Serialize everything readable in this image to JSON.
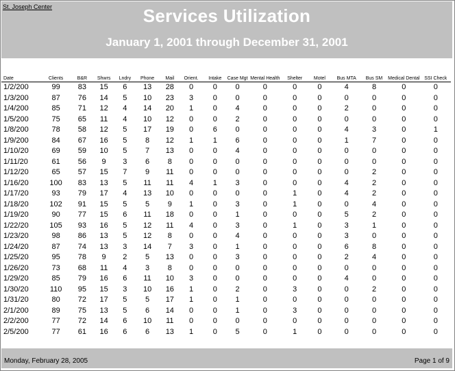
{
  "header": {
    "org": "St. Joseph Center",
    "title": "Services Utilization",
    "subtitle": "January 1, 2001 through December 31, 2001"
  },
  "columns": [
    "Date",
    "Clients",
    "B&R",
    "Shwrs",
    "Lndry",
    "Phone",
    "Mail",
    "Orient.",
    "Intake",
    "Case Mgt",
    "Mental Health",
    "Shelter",
    "Motel",
    "Bus MTA",
    "Bus SM",
    "Medical Dental",
    "SSI Check"
  ],
  "rows": [
    [
      "1/2/200",
      "99",
      "83",
      "15",
      "6",
      "13",
      "28",
      "0",
      "0",
      "0",
      "0",
      "0",
      "0",
      "4",
      "8",
      "0",
      "0"
    ],
    [
      "1/3/200",
      "87",
      "76",
      "14",
      "5",
      "10",
      "23",
      "3",
      "0",
      "0",
      "0",
      "0",
      "0",
      "0",
      "0",
      "0",
      "0"
    ],
    [
      "1/4/200",
      "85",
      "71",
      "12",
      "4",
      "14",
      "20",
      "1",
      "0",
      "4",
      "0",
      "0",
      "0",
      "2",
      "0",
      "0",
      "0"
    ],
    [
      "1/5/200",
      "75",
      "65",
      "11",
      "4",
      "10",
      "12",
      "0",
      "0",
      "2",
      "0",
      "0",
      "0",
      "0",
      "0",
      "0",
      "0"
    ],
    [
      "1/8/200",
      "78",
      "58",
      "12",
      "5",
      "17",
      "19",
      "0",
      "6",
      "0",
      "0",
      "0",
      "0",
      "4",
      "3",
      "0",
      "1"
    ],
    [
      "1/9/200",
      "84",
      "67",
      "16",
      "5",
      "8",
      "12",
      "1",
      "1",
      "6",
      "0",
      "0",
      "0",
      "1",
      "7",
      "0",
      "0"
    ],
    [
      "1/10/20",
      "69",
      "59",
      "10",
      "5",
      "7",
      "13",
      "0",
      "0",
      "4",
      "0",
      "0",
      "0",
      "0",
      "0",
      "0",
      "0"
    ],
    [
      "1/11/20",
      "61",
      "56",
      "9",
      "3",
      "6",
      "8",
      "0",
      "0",
      "0",
      "0",
      "0",
      "0",
      "0",
      "0",
      "0",
      "0"
    ],
    [
      "1/12/20",
      "65",
      "57",
      "15",
      "7",
      "9",
      "11",
      "0",
      "0",
      "0",
      "0",
      "0",
      "0",
      "0",
      "2",
      "0",
      "0"
    ],
    [
      "1/16/20",
      "100",
      "83",
      "13",
      "5",
      "11",
      "11",
      "4",
      "1",
      "3",
      "0",
      "0",
      "0",
      "4",
      "2",
      "0",
      "0"
    ],
    [
      "1/17/20",
      "93",
      "79",
      "17",
      "4",
      "13",
      "10",
      "0",
      "0",
      "0",
      "0",
      "1",
      "0",
      "4",
      "2",
      "0",
      "0"
    ],
    [
      "1/18/20",
      "102",
      "91",
      "15",
      "5",
      "5",
      "9",
      "1",
      "0",
      "3",
      "0",
      "1",
      "0",
      "0",
      "4",
      "0",
      "0"
    ],
    [
      "1/19/20",
      "90",
      "77",
      "15",
      "6",
      "11",
      "18",
      "0",
      "0",
      "1",
      "0",
      "0",
      "0",
      "5",
      "2",
      "0",
      "0"
    ],
    [
      "1/22/20",
      "105",
      "93",
      "16",
      "5",
      "12",
      "11",
      "4",
      "0",
      "3",
      "0",
      "1",
      "0",
      "3",
      "1",
      "0",
      "0"
    ],
    [
      "1/23/20",
      "98",
      "86",
      "13",
      "5",
      "12",
      "8",
      "0",
      "0",
      "4",
      "0",
      "0",
      "0",
      "3",
      "0",
      "0",
      "0"
    ],
    [
      "1/24/20",
      "87",
      "74",
      "13",
      "3",
      "14",
      "7",
      "3",
      "0",
      "1",
      "0",
      "0",
      "0",
      "6",
      "8",
      "0",
      "0"
    ],
    [
      "1/25/20",
      "95",
      "78",
      "9",
      "2",
      "5",
      "13",
      "0",
      "0",
      "3",
      "0",
      "0",
      "0",
      "2",
      "4",
      "0",
      "0"
    ],
    [
      "1/26/20",
      "73",
      "68",
      "11",
      "4",
      "3",
      "8",
      "0",
      "0",
      "0",
      "0",
      "0",
      "0",
      "0",
      "0",
      "0",
      "0"
    ],
    [
      "1/29/20",
      "85",
      "79",
      "16",
      "6",
      "11",
      "10",
      "3",
      "0",
      "0",
      "0",
      "0",
      "0",
      "4",
      "0",
      "0",
      "0"
    ],
    [
      "1/30/20",
      "110",
      "95",
      "15",
      "3",
      "10",
      "16",
      "1",
      "0",
      "2",
      "0",
      "3",
      "0",
      "0",
      "2",
      "0",
      "0"
    ],
    [
      "1/31/20",
      "80",
      "72",
      "17",
      "5",
      "5",
      "17",
      "1",
      "0",
      "1",
      "0",
      "0",
      "0",
      "0",
      "0",
      "0",
      "0"
    ],
    [
      "2/1/200",
      "89",
      "75",
      "13",
      "5",
      "6",
      "14",
      "0",
      "0",
      "1",
      "0",
      "3",
      "0",
      "0",
      "0",
      "0",
      "0"
    ],
    [
      "2/2/200",
      "77",
      "72",
      "14",
      "6",
      "10",
      "11",
      "0",
      "0",
      "0",
      "0",
      "0",
      "0",
      "0",
      "0",
      "0",
      "0"
    ],
    [
      "2/5/200",
      "77",
      "61",
      "16",
      "6",
      "6",
      "13",
      "1",
      "0",
      "5",
      "0",
      "1",
      "0",
      "0",
      "0",
      "0",
      "0"
    ]
  ],
  "footer": {
    "date": "Monday, February 28, 2005",
    "page": "Page 1 of 9"
  }
}
